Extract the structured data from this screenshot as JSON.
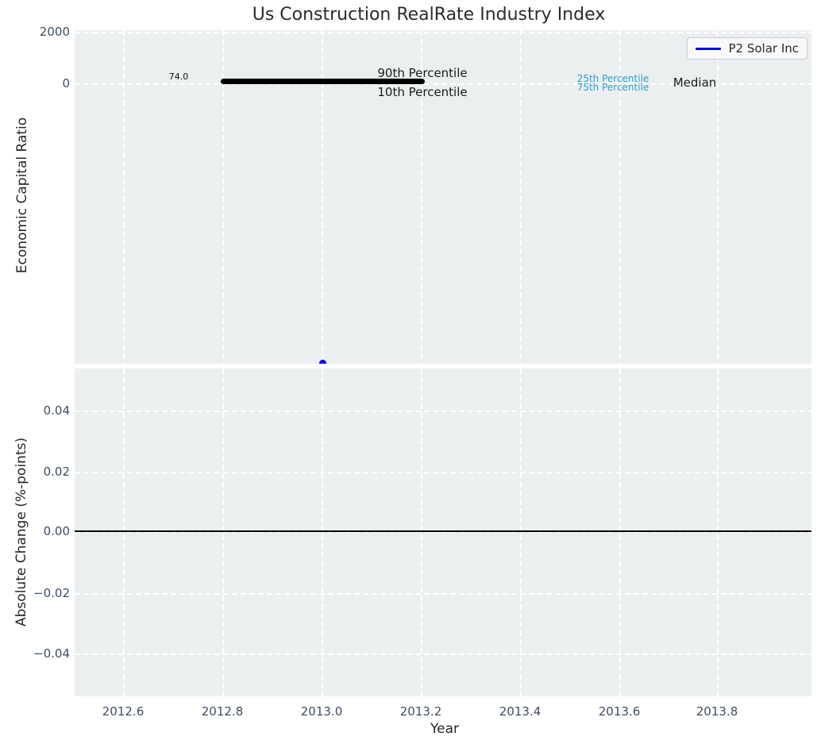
{
  "title": "Us Construction RealRate Industry Index",
  "legend": {
    "series_label": "P2 Solar Inc",
    "line_color": "#0000ee"
  },
  "colors": {
    "plot_background": "#eceff0",
    "percentile_blue": "#2aa0cc",
    "series_blue": "#0000ee",
    "band_black": "#000000",
    "tick_slate": "#3e4d63"
  },
  "top_plot": {
    "ylabel": "Economic Capital Ratio",
    "yticks": [
      "2000",
      "0"
    ],
    "annotations": {
      "band_value": "74.0",
      "p90": "90th Percentile",
      "p10": "10th Percentile",
      "p25": "25th Percentile",
      "p75": "75th Percentile",
      "median": "Median"
    }
  },
  "bottom_plot": {
    "ylabel": "Absolute Change (%-points)",
    "yticks": [
      "0.04",
      "0.02",
      "0.00",
      "−0.02",
      "−0.04"
    ]
  },
  "xaxis": {
    "label": "Year",
    "ticks": [
      "2012.6",
      "2012.8",
      "2013.0",
      "2013.2",
      "2013.4",
      "2013.6",
      "2013.8"
    ]
  },
  "chart_data": [
    {
      "type": "line",
      "panel": "top",
      "title": "Us Construction RealRate Industry Index",
      "xlabel": "Year",
      "ylabel": "Economic Capital Ratio",
      "xlim": [
        2012.5,
        2014.0
      ],
      "visible_yticks": [
        2000,
        0
      ],
      "grid": true,
      "legend_position": "upper right",
      "series": [
        {
          "name": "P2 Solar Inc",
          "color": "#0000ee",
          "marker": "circle",
          "x": [
            2013.0
          ],
          "y": [
            -10800
          ],
          "note": "single point at x=2013.0, clipped at the bottom edge of the panel (estimated ≈ -10800 from axis scale)"
        }
      ],
      "percentile_band": {
        "x_start": 2012.8,
        "x_end": 2013.2,
        "value": 74.0,
        "value_label": "74.0",
        "labels": [
          "90th Percentile",
          "10th Percentile",
          "25th Percentile",
          "75th Percentile",
          "Median"
        ],
        "band_color": "#000000"
      }
    },
    {
      "type": "line",
      "panel": "bottom",
      "xlabel": "Year",
      "ylabel": "Absolute Change (%-points)",
      "xlim": [
        2012.5,
        2014.0
      ],
      "ylim": [
        -0.054,
        0.054
      ],
      "yticks": [
        0.04,
        0.02,
        0.0,
        -0.02,
        -0.04
      ],
      "xticks": [
        2012.6,
        2012.8,
        2013.0,
        2013.2,
        2013.4,
        2013.6,
        2013.8
      ],
      "grid": true,
      "zero_line": 0.0,
      "series": []
    }
  ]
}
